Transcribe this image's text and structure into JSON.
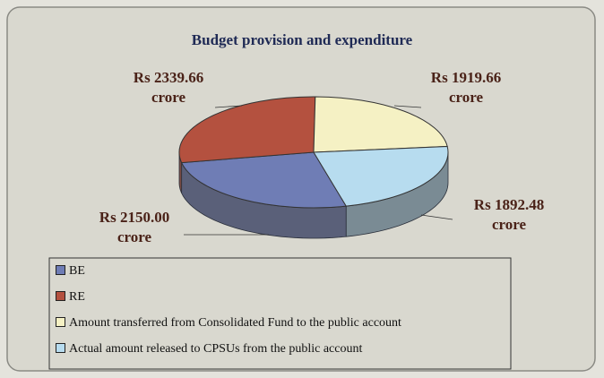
{
  "chart_data": {
    "type": "pie",
    "title": "Budget provision and expenditure",
    "categories": [
      "BE",
      "RE",
      "Amount transferred from Consolidated Fund to the public account",
      "Actual amount released to CPSUs from the public account"
    ],
    "values": [
      2150.0,
      2339.66,
      1919.66,
      1892.48
    ],
    "value_labels": [
      "Rs 2150.00 crore",
      "Rs 2339.66 crore",
      "Rs 1919.66 crore",
      "Rs 1892.48 crore"
    ],
    "colors": [
      "#6f7db5",
      "#b4513f",
      "#f5f1c4",
      "#b7dcef"
    ]
  }
}
